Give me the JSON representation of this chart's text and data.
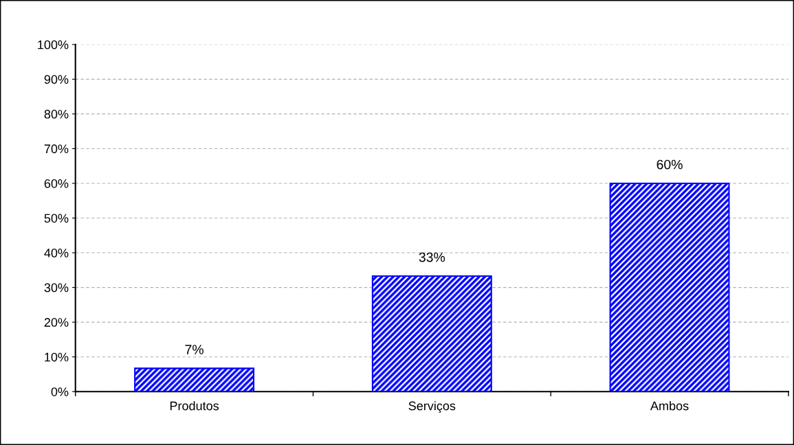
{
  "chart_data": {
    "type": "bar",
    "categories": [
      "Produtos",
      "Serviços",
      "Ambos"
    ],
    "values": [
      6.7,
      33.3,
      60
    ],
    "value_labels": [
      "7%",
      "33%",
      "60%"
    ],
    "color": "#0000ff",
    "ylim": [
      0,
      100
    ],
    "yticks": [
      {
        "value": 0,
        "label": "0%"
      },
      {
        "value": 10,
        "label": "10%"
      },
      {
        "value": 20,
        "label": "20%"
      },
      {
        "value": 30,
        "label": "30%"
      },
      {
        "value": 40,
        "label": "40%"
      },
      {
        "value": 50,
        "label": "50%"
      },
      {
        "value": 60,
        "label": "60%"
      },
      {
        "value": 70,
        "label": "70%"
      },
      {
        "value": 80,
        "label": "80%"
      },
      {
        "value": 90,
        "label": "90%"
      },
      {
        "value": 100,
        "label": "100%"
      }
    ],
    "grid": "y"
  }
}
